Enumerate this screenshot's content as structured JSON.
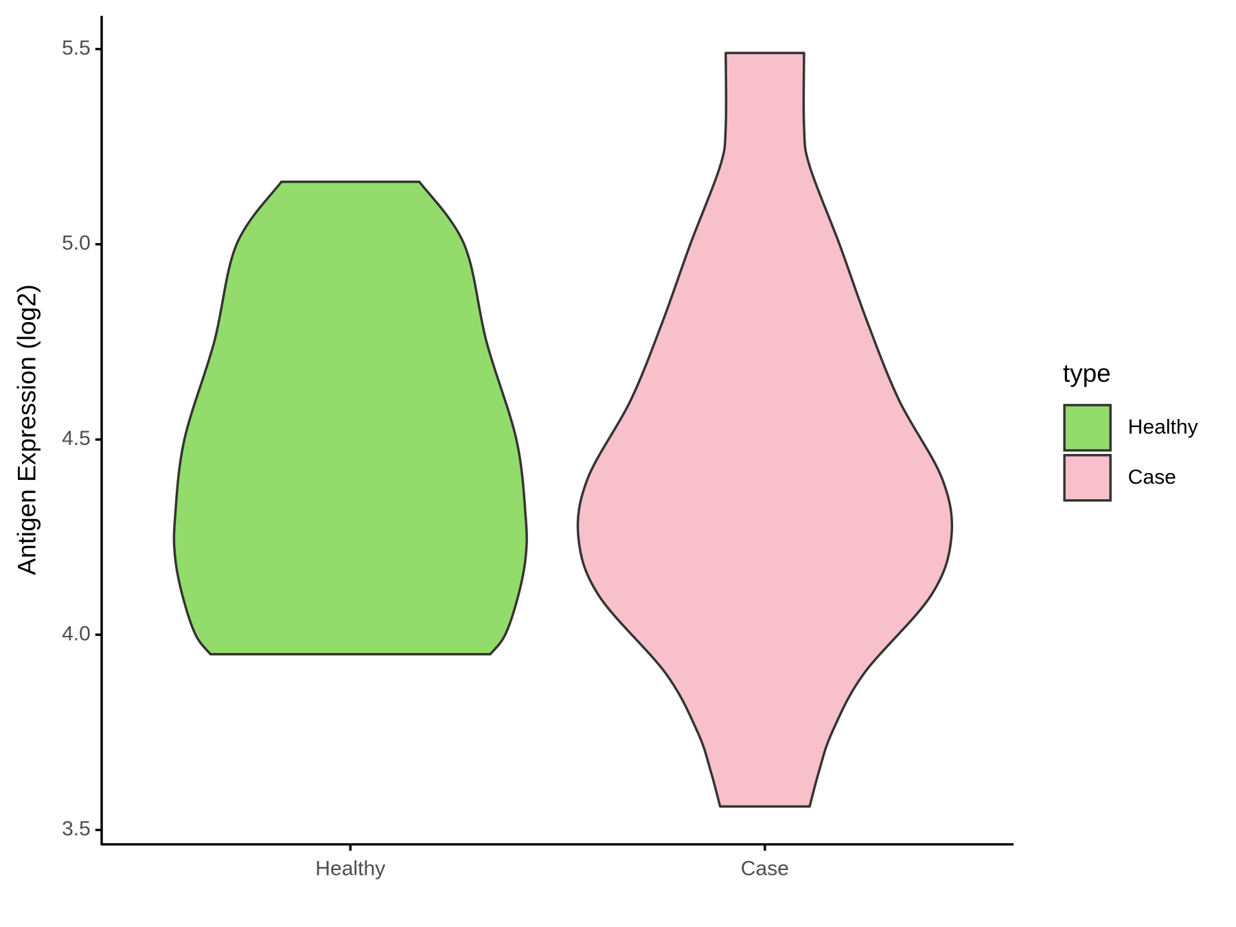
{
  "chart_data": {
    "type": "violin",
    "y_label": "Antigen Expression (log2)",
    "categories": [
      "Healthy",
      "Case"
    ],
    "legend_title": "type",
    "legend_position": "right",
    "ylim": [
      3.463,
      5.585
    ],
    "yticks": [
      3.5,
      {
        "value": 4,
        "label": "4.0"
      },
      4.5,
      {
        "value": 5,
        "label": "5.0"
      },
      5.5
    ],
    "series": [
      {
        "name": "Healthy",
        "color": "#93dc6b",
        "y": [
          5.16,
          5.0,
          4.75,
          4.5,
          4.3,
          4.2,
          4.1,
          4.0,
          3.95
        ],
        "density": [
          0.37,
          0.61,
          0.73,
          0.89,
          0.94,
          0.94,
          0.9,
          0.83,
          0.75
        ]
      },
      {
        "name": "Case",
        "color": "#f7c0cb",
        "y": [
          5.49,
          5.3,
          5.2,
          5.0,
          4.8,
          4.6,
          4.4,
          4.25,
          4.1,
          3.9,
          3.75,
          3.65,
          3.56
        ],
        "density": [
          0.21,
          0.21,
          0.24,
          0.4,
          0.55,
          0.72,
          0.95,
          1.0,
          0.89,
          0.53,
          0.36,
          0.29,
          0.24
        ]
      }
    ]
  }
}
